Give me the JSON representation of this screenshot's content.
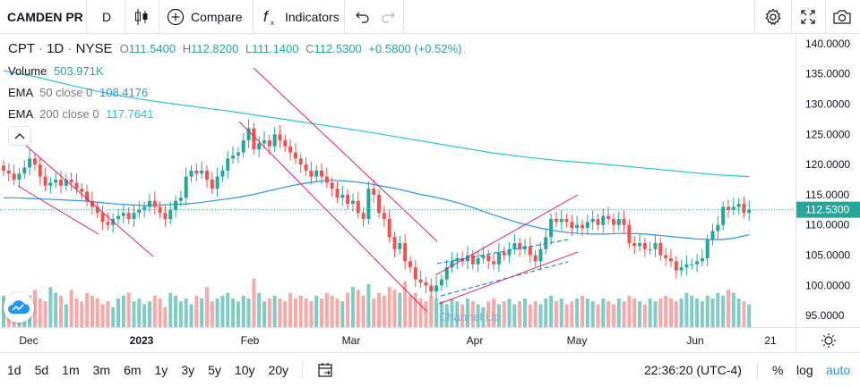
{
  "toolbar": {
    "symbol": "CAMDEN PR",
    "interval": "D",
    "compare_label": "Compare",
    "indicators_label": "Indicators"
  },
  "legend": {
    "ticker": "CPT",
    "interval": "1D",
    "exchange": "NYSE",
    "open_label": "O",
    "open": "111.5400",
    "high_label": "H",
    "high": "112.8200",
    "low_label": "L",
    "low": "111.1400",
    "close_label": "C",
    "close": "112.5300",
    "change": "+0.5800 (+0.52%)",
    "volume_label": "Volume",
    "volume": "503.971K",
    "ema50_label": "EMA",
    "ema50_params": "50 close 0",
    "ema50_value": "108.4176",
    "ema200_label": "EMA",
    "ema200_params": "200 close 0",
    "ema200_value": "117.7641"
  },
  "pattern_label": "Channel Up",
  "price_axis": {
    "ticks": [
      "140.0000",
      "135.0000",
      "130.0000",
      "125.0000",
      "120.0000",
      "115.0000",
      "110.0000",
      "105.0000",
      "100.0000",
      "95.0000"
    ],
    "current_price": "112.5300"
  },
  "time_axis": {
    "labels": [
      {
        "text": "Dec",
        "bold": false
      },
      {
        "text": "2023",
        "bold": true
      },
      {
        "text": "Feb",
        "bold": false
      },
      {
        "text": "Mar",
        "bold": false
      },
      {
        "text": "Apr",
        "bold": false
      },
      {
        "text": "May",
        "bold": false
      },
      {
        "text": "Jun",
        "bold": false
      },
      {
        "text": "21",
        "bold": false
      }
    ]
  },
  "bottom": {
    "ranges": [
      "1d",
      "5d",
      "1m",
      "3m",
      "6m",
      "1y",
      "3y",
      "5y",
      "10y",
      "20y"
    ],
    "time": "22:36:20 (UTC-4)",
    "percent_label": "%",
    "log_label": "log",
    "auto_label": "auto"
  },
  "colors": {
    "up": "#26a69a",
    "down": "#ef5350",
    "ema50": "#2196f3",
    "ema200": "#26c6da",
    "trendline": "#e91e63",
    "channel": "#1e88e5"
  },
  "chart_data": {
    "type": "candlestick",
    "title": "CPT · 1D · NYSE",
    "ylim": [
      94,
      141
    ],
    "grid": false,
    "x_labels": [
      "Dec",
      "2023",
      "Feb",
      "Mar",
      "Apr",
      "May",
      "Jun",
      "21"
    ],
    "series": [
      {
        "name": "Close",
        "values": [
          119,
          118.5,
          117.5,
          118.5,
          119.5,
          121,
          120,
          118,
          116.5,
          117,
          117.5,
          116.5,
          117.5,
          117,
          116,
          115.5,
          114,
          113,
          112,
          110.5,
          110,
          111,
          111.5,
          112,
          111,
          112,
          112.5,
          113,
          114,
          113,
          112,
          111,
          112.5,
          114,
          114.5,
          118,
          119,
          118.5,
          119,
          117.5,
          116,
          118,
          119,
          121,
          121.5,
          122,
          124,
          126,
          122.5,
          123.5,
          124,
          123,
          125,
          124,
          123,
          122,
          121,
          120,
          119,
          118,
          119,
          118,
          117,
          116,
          114.5,
          115,
          113.5,
          114,
          112,
          111,
          116,
          115,
          112,
          111,
          108,
          106,
          107,
          104,
          103,
          101,
          100.5,
          100,
          99,
          100,
          101,
          103,
          104,
          104.5,
          104,
          105,
          103.5,
          104.5,
          105,
          104,
          103.5,
          105.5,
          105,
          106,
          107,
          106,
          106.5,
          105,
          104,
          106,
          108,
          111,
          110.5,
          111,
          110.5,
          109.5,
          110,
          109.5,
          110.5,
          111,
          110,
          111.5,
          111,
          110,
          111,
          110,
          107,
          106.5,
          107,
          106,
          106,
          107,
          105,
          104.5,
          104,
          102.5,
          103,
          103.5,
          103.5,
          104,
          104.5,
          107.5,
          109,
          110,
          113,
          112.5,
          113,
          113.5,
          112,
          112.5
        ]
      },
      {
        "name": "Volume",
        "values": [
          0.55,
          0.45,
          0.6,
          0.5,
          0.4,
          0.55,
          0.65,
          0.5,
          0.45,
          0.7,
          0.6,
          0.55,
          0.4,
          0.65,
          0.5,
          0.45,
          0.6,
          0.55,
          0.5,
          0.4,
          0.45,
          0.35,
          0.5,
          0.55,
          0.6,
          0.45,
          0.5,
          0.4,
          0.45,
          0.55,
          0.5,
          0.35,
          0.6,
          0.55,
          0.45,
          0.5,
          0.4,
          0.55,
          0.5,
          0.7,
          0.45,
          0.5,
          0.55,
          0.6,
          0.5,
          0.45,
          0.55,
          0.5,
          0.85,
          0.6,
          0.45,
          0.5,
          0.55,
          0.5,
          0.45,
          0.6,
          0.5,
          0.55,
          0.5,
          0.45,
          0.55,
          0.5,
          0.6,
          0.55,
          0.5,
          0.45,
          0.6,
          0.7,
          0.65,
          0.55,
          0.75,
          0.5,
          0.6,
          0.55,
          0.7,
          0.65,
          0.6,
          0.8,
          0.55,
          0.6,
          0.5,
          0.45,
          0.55,
          0.5,
          0.45,
          0.4,
          0.5,
          0.45,
          0.4,
          0.5,
          0.45,
          0.4,
          0.35,
          0.45,
          0.5,
          0.4,
          0.45,
          0.5,
          0.4,
          0.45,
          0.5,
          0.4,
          0.45,
          0.4,
          0.5,
          0.55,
          0.45,
          0.5,
          0.4,
          0.45,
          0.5,
          0.55,
          0.5,
          0.45,
          0.4,
          0.5,
          0.45,
          0.4,
          0.5,
          0.45,
          0.55,
          0.5,
          0.45,
          0.4,
          0.5,
          0.45,
          0.5,
          0.55,
          0.5,
          0.45,
          0.5,
          0.6,
          0.55,
          0.5,
          0.45,
          0.55,
          0.5,
          0.6,
          0.55,
          0.65,
          0.6,
          0.5,
          0.45,
          0.4
        ]
      },
      {
        "name": "EMA 50",
        "values": [
          114.5,
          114.5,
          114.4,
          114.3,
          114.2,
          114.1,
          114,
          113.8,
          113.6,
          113.4,
          113.3,
          113.2,
          113.3,
          113.4,
          113.5,
          113.7,
          114,
          114.3,
          114.6,
          115,
          115.5,
          116,
          116.5,
          116.9,
          117.2,
          117.4,
          117.3,
          117.1,
          116.8,
          116.4,
          116,
          115.5,
          115,
          114.6,
          114.1,
          113.5,
          112.8,
          112,
          111.3,
          110.6,
          110,
          109.5,
          109.1,
          108.8,
          108.6,
          108.5,
          108.5,
          108.6,
          108.6,
          108.5,
          108.3,
          108.1,
          107.9,
          107.7,
          107.6,
          107.6,
          107.9,
          108.4
        ]
      },
      {
        "name": "EMA 200",
        "values": [
          135.5,
          134.5,
          133.2,
          132,
          131,
          130.2,
          129.5,
          128.8,
          128,
          127.2,
          126.4,
          125.6,
          124.7,
          123.8,
          122.9,
          122,
          121.3,
          120.7,
          120.3,
          119.8,
          119.3,
          118.8,
          118.3,
          118
        ]
      }
    ]
  }
}
